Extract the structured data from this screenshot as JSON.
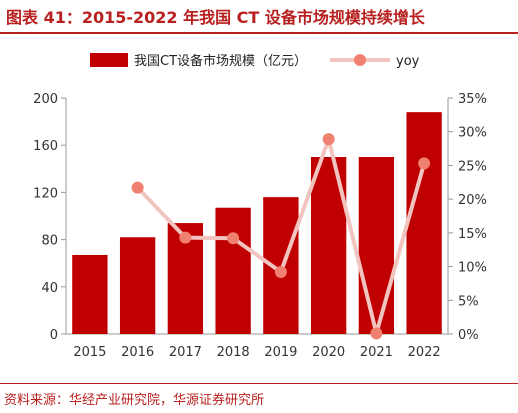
{
  "title": "图表 41：2015-2022 年我国 CT 设备市场规模持续增长",
  "source": "资料来源：华经产业研究院，华源证券研究所",
  "colors": {
    "bar": "#c00000",
    "line": "#f2c4c0",
    "marker": "#f08070",
    "accent": "#b8201f"
  },
  "chart_data": {
    "type": "bar",
    "categories": [
      "2015",
      "2016",
      "2017",
      "2018",
      "2019",
      "2020",
      "2021",
      "2022"
    ],
    "series": [
      {
        "name": "我国CT设备市场规模（亿元）",
        "type": "bar",
        "axis": "left",
        "values": [
          67,
          82,
          94,
          107,
          116,
          150,
          150,
          188
        ]
      },
      {
        "name": "yoy",
        "type": "line",
        "axis": "right",
        "values": [
          null,
          21.7,
          14.3,
          14.2,
          9.2,
          28.9,
          0.1,
          25.3
        ]
      }
    ],
    "y_left": {
      "ylim": [
        0,
        200
      ],
      "ticks": [
        "0",
        "40",
        "80",
        "120",
        "160",
        "200"
      ]
    },
    "y_right": {
      "ylim": [
        0,
        35
      ],
      "ticks": [
        "0%",
        "5%",
        "10%",
        "15%",
        "20%",
        "25%",
        "30%",
        "35%"
      ]
    },
    "legend": "top",
    "grid": false
  }
}
